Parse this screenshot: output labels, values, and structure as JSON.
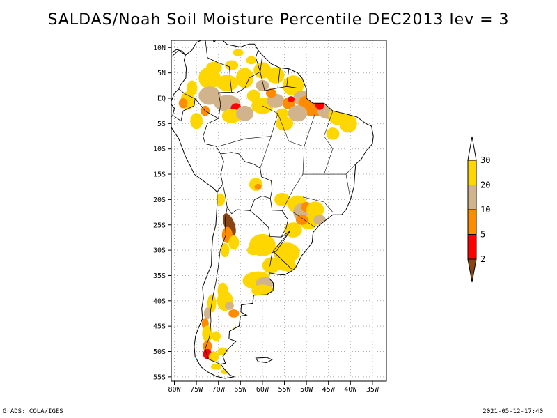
{
  "title": "SALDAS/Noah Soil Moisture Percentile DEC2013 lev = 3",
  "map": {
    "lat_ticks": [
      "10N",
      "5N",
      "EQ",
      "5S",
      "10S",
      "15S",
      "20S",
      "25S",
      "30S",
      "35S",
      "40S",
      "45S",
      "50S",
      "55S"
    ],
    "lon_ticks": [
      "80W",
      "75W",
      "70W",
      "65W",
      "60W",
      "55W",
      "50W",
      "45W",
      "40W",
      "35W"
    ],
    "extent": {
      "lon": [
        -81,
        -34
      ],
      "lat": [
        -56,
        12
      ]
    }
  },
  "legend": {
    "bins": [
      {
        "label": "30",
        "color": "#ffffff"
      },
      {
        "label": "20",
        "color": "#ffd700"
      },
      {
        "label": "10",
        "color": "#d2b48c"
      },
      {
        "label": "5",
        "color": "#ff8c00"
      },
      {
        "label": "2",
        "color": "#ff0000"
      },
      {
        "label": "",
        "color": "#8b4513"
      }
    ]
  },
  "footer": {
    "left": "GrADS: COLA/IGES",
    "right": "2021-05-12-17:40"
  }
}
